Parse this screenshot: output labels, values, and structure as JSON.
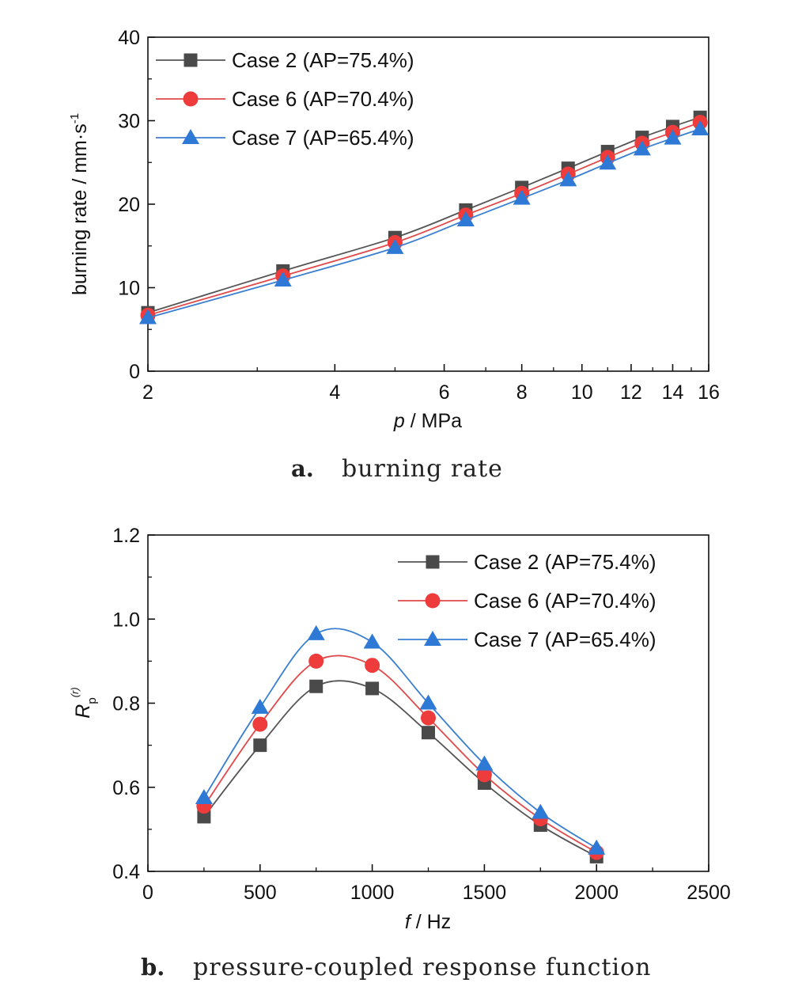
{
  "figure": {
    "panel_a": {
      "caption_letter": "a.",
      "caption_text": "burning rate"
    },
    "panel_b": {
      "caption_letter": "b.",
      "caption_text": "pressure-coupled response function"
    }
  },
  "colors": {
    "case2": "#4a4a4a",
    "case6": "#ee3b3b",
    "case7": "#2f79d6",
    "case2_line": "#555555",
    "case6_line": "#e04a4a",
    "case7_line": "#3a7fd0"
  },
  "chart_data": [
    {
      "type": "line",
      "xscale": "log",
      "xlabel_italic": "p",
      "xlabel_rest": " / MPa",
      "ylabel": "burning rate / mm·s",
      "ylabel_sup": "-1",
      "xlim": [
        2,
        16
      ],
      "ylim": [
        0,
        40
      ],
      "xticks": [
        2,
        4,
        6,
        8,
        10,
        12,
        14,
        16
      ],
      "yticks": [
        0,
        10,
        20,
        30,
        40
      ],
      "legend_position": "top-left",
      "series": [
        {
          "name": "Case 2 (AP=75.4%)",
          "marker": "square",
          "x": [
            2,
            3.3,
            5,
            6.5,
            8,
            9.5,
            11,
            12.5,
            14,
            15.5
          ],
          "y": [
            7.0,
            12.0,
            16.0,
            19.3,
            22.0,
            24.3,
            26.3,
            28.0,
            29.3,
            30.4
          ]
        },
        {
          "name": "Case 6 (AP=70.4%)",
          "marker": "circle",
          "x": [
            2,
            3.3,
            5,
            6.5,
            8,
            9.5,
            11,
            12.5,
            14,
            15.5
          ],
          "y": [
            6.7,
            11.4,
            15.4,
            18.7,
            21.3,
            23.6,
            25.6,
            27.3,
            28.6,
            29.8
          ]
        },
        {
          "name": "Case 7 (AP=65.4%)",
          "marker": "triangle",
          "x": [
            2,
            3.3,
            5,
            6.5,
            8,
            9.5,
            11,
            12.5,
            14,
            15.5
          ],
          "y": [
            6.4,
            10.9,
            14.8,
            18.1,
            20.7,
            22.9,
            24.9,
            26.6,
            27.9,
            29.0
          ]
        }
      ]
    },
    {
      "type": "line",
      "xscale": "linear",
      "xlabel_italic": "f",
      "xlabel_rest": " / Hz",
      "ylabel": "R",
      "ylabel_sub": "p",
      "ylabel_sup": "(r)",
      "xlim": [
        0,
        2500
      ],
      "ylim": [
        0.4,
        1.2
      ],
      "xticks": [
        0,
        500,
        1000,
        1500,
        2000,
        2500
      ],
      "yticks": [
        0.4,
        0.6,
        0.8,
        1.0,
        1.2
      ],
      "xtick_labels": [
        "0",
        "500",
        "1000",
        "1500",
        "2000",
        "2500"
      ],
      "ytick_labels": [
        "0.4",
        "0.6",
        "0.8",
        "1.0",
        "1.2"
      ],
      "legend_position": "top-right",
      "series": [
        {
          "name": "Case 2 (AP=75.4%)",
          "marker": "square",
          "x": [
            250,
            500,
            750,
            1000,
            1250,
            1500,
            1750,
            2000
          ],
          "y": [
            0.53,
            0.7,
            0.84,
            0.835,
            0.73,
            0.61,
            0.51,
            0.435
          ]
        },
        {
          "name": "Case 6 (AP=70.4%)",
          "marker": "circle",
          "x": [
            250,
            500,
            750,
            1000,
            1250,
            1500,
            1750,
            2000
          ],
          "y": [
            0.555,
            0.75,
            0.9,
            0.89,
            0.765,
            0.63,
            0.525,
            0.445
          ]
        },
        {
          "name": "Case 7 (AP=65.4%)",
          "marker": "triangle",
          "x": [
            250,
            500,
            750,
            1000,
            1250,
            1500,
            1750,
            2000
          ],
          "y": [
            0.575,
            0.79,
            0.965,
            0.945,
            0.8,
            0.655,
            0.54,
            0.455
          ]
        }
      ]
    }
  ]
}
